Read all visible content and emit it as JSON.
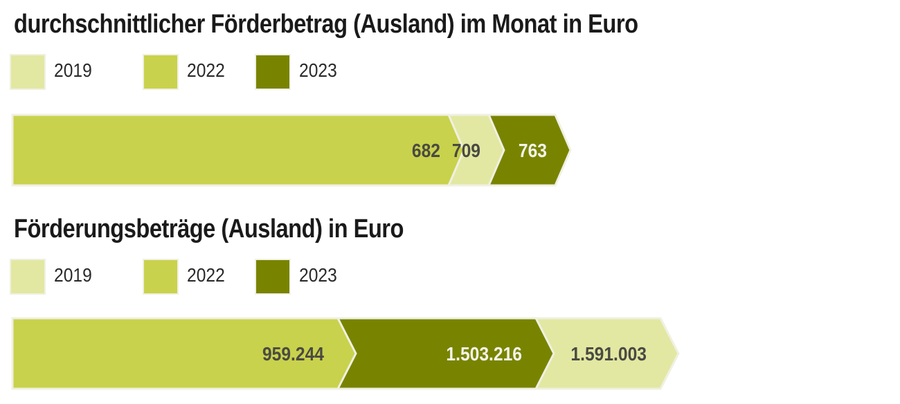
{
  "chart_data": [
    {
      "type": "bar",
      "title": "durchschnittlicher Förderbetrag (Ausland) im Monat in Euro",
      "legend": [
        "2019",
        "2022",
        "2023"
      ],
      "legend_placement": "top-left",
      "stacking_order": [
        "2022",
        "2019",
        "2023"
      ],
      "series": [
        {
          "name": "2022",
          "value": 682,
          "label": "682"
        },
        {
          "name": "2019",
          "value": 709,
          "label": "709"
        },
        {
          "name": "2023",
          "value": 763,
          "label": "763"
        }
      ],
      "grid": false
    },
    {
      "type": "bar",
      "title": "Förderungsbeträge (Ausland) in Euro",
      "legend": [
        "2019",
        "2022",
        "2023"
      ],
      "legend_placement": "top-left",
      "stacking_order": [
        "2022",
        "2023",
        "2019"
      ],
      "series": [
        {
          "name": "2022",
          "value": 959244,
          "label": "959.244"
        },
        {
          "name": "2023",
          "value": 1503216,
          "label": "1.503.216"
        },
        {
          "name": "2019",
          "value": 1591003,
          "label": "1.591.003"
        }
      ],
      "grid": false
    }
  ],
  "colors": {
    "2019": "#e2e8a2",
    "2022": "#c9d24c",
    "2023": "#788400",
    "label_dark": "#4a4a42",
    "label_light": "#f4f4ea",
    "outline": "#f0f0e2"
  }
}
